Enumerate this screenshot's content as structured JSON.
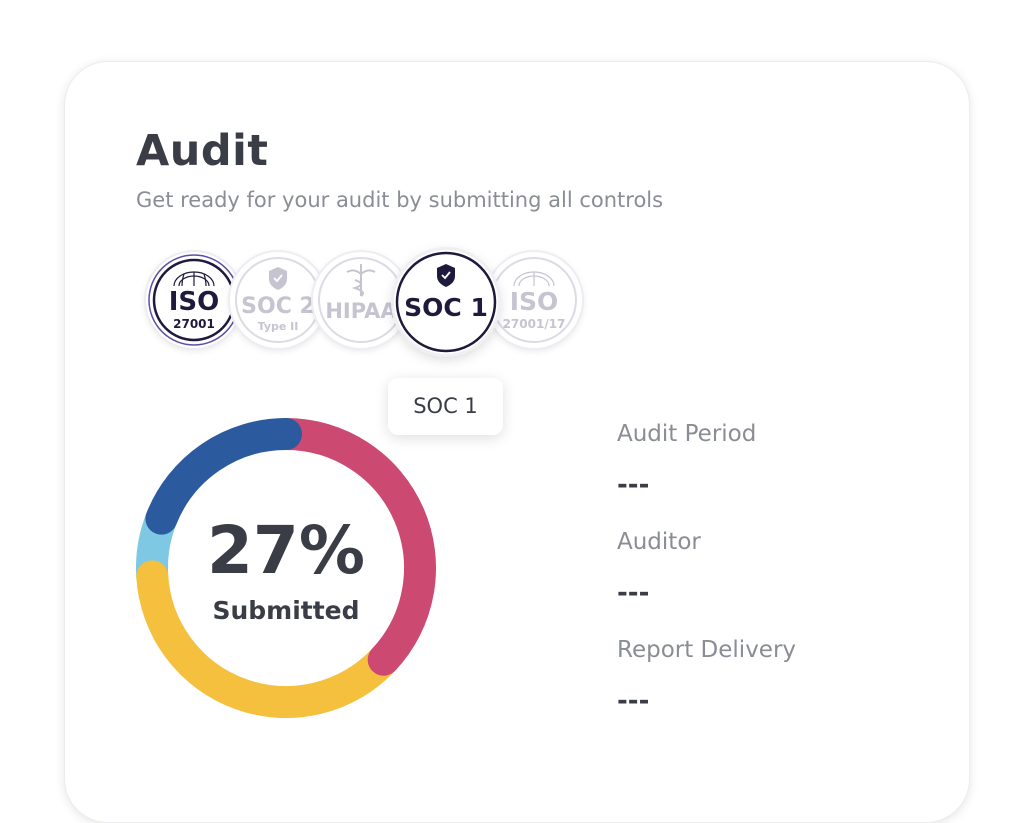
{
  "audit": {
    "title": "Audit",
    "subtitle": "Get ready for your audit by submitting all controls"
  },
  "frameworks": [
    {
      "name": "ISO 27001",
      "main": "ISO",
      "sub": "27001",
      "selected": true
    },
    {
      "name": "SOC 2 Type II",
      "main": "SOC 2",
      "sub": "Type II",
      "selected": false
    },
    {
      "name": "HIPAA",
      "main": "HIPAA",
      "sub": "",
      "selected": false
    },
    {
      "name": "SOC 1",
      "main": "SOC 1",
      "sub": "",
      "selected": true
    },
    {
      "name": "ISO 27001/17",
      "main": "ISO",
      "sub": "27001/17",
      "selected": false
    }
  ],
  "tooltip": {
    "text": "SOC 1"
  },
  "progress": {
    "percent_label": "27%",
    "status_label": "Submitted",
    "segments": [
      {
        "name": "red",
        "color": "#cc4a72",
        "fraction": 0.37
      },
      {
        "name": "yellow",
        "color": "#f4c03e",
        "fraction": 0.37
      },
      {
        "name": "light-blue",
        "color": "#7ec8e3",
        "fraction": 0.07
      },
      {
        "name": "blue",
        "color": "#2b5a9e",
        "fraction": 0.19
      }
    ]
  },
  "details": {
    "audit_period": {
      "label": "Audit Period",
      "value": "---"
    },
    "auditor": {
      "label": "Auditor",
      "value": "---"
    },
    "report_delivery": {
      "label": "Report Delivery",
      "value": "---"
    }
  },
  "colors": {
    "dark_text": "#3a3d45",
    "muted_text": "#8b8d95",
    "badge_active": "#1e1a3c",
    "badge_inactive": "#c6c4d0"
  }
}
